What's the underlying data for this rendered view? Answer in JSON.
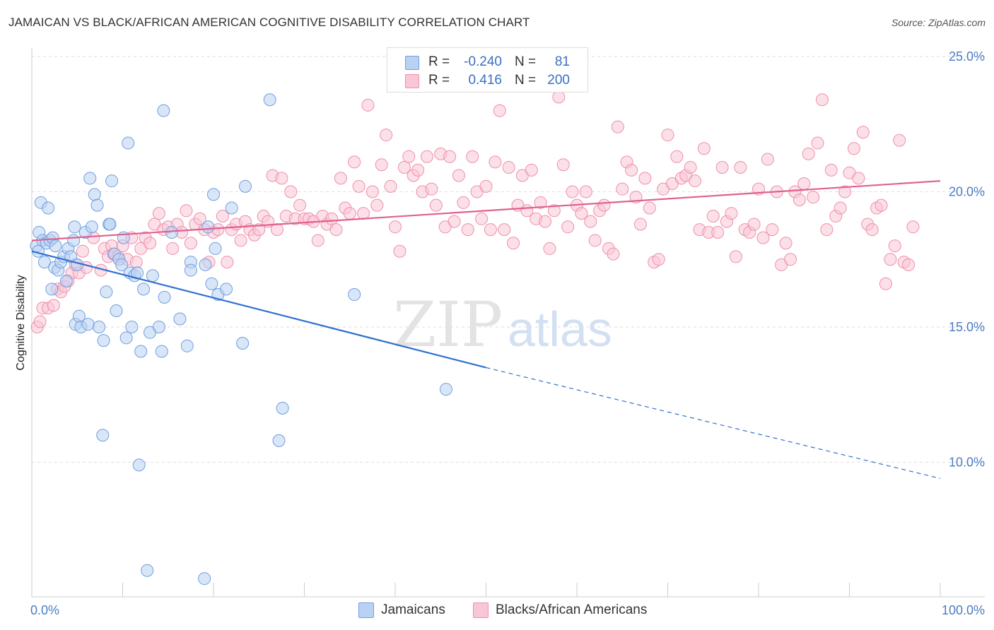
{
  "title": "JAMAICAN VS BLACK/AFRICAN AMERICAN COGNITIVE DISABILITY CORRELATION CHART",
  "source": "Source: ZipAtlas.com",
  "watermark": {
    "zip": "ZIP",
    "atlas": "atlas"
  },
  "legend_top": [
    {
      "r_label": "R =",
      "r_value": "-0.240",
      "n_label": "N =",
      "n_value": "81",
      "color": "#a9c7f0"
    },
    {
      "r_label": "R =",
      "r_value": "0.416",
      "n_label": "N =",
      "n_value": "200",
      "color": "#f7b8cb"
    }
  ],
  "chart_data": {
    "type": "scatter",
    "title": "JAMAICAN VS BLACK/AFRICAN AMERICAN COGNITIVE DISABILITY CORRELATION CHART",
    "xlabel": "",
    "ylabel": "Cognitive Disability",
    "x_ticks": [
      "0.0%",
      "100.0%"
    ],
    "y_ticks": [
      "10.0%",
      "15.0%",
      "20.0%",
      "25.0%"
    ],
    "xlim": [
      0,
      100
    ],
    "ylim": [
      5.0,
      25.5
    ],
    "grid": true,
    "legend_position": "bottom",
    "series": [
      {
        "name": "Jamaicans",
        "color": "#6f9fe0",
        "fill": "#b9d2f3",
        "trend": {
          "x": [
            0,
            50
          ],
          "y": [
            17.8,
            13.5
          ],
          "dashed_extension_to": [
            100,
            9.4
          ],
          "color": "#3070d0"
        },
        "points": [
          [
            0.5,
            18.0
          ],
          [
            0.7,
            17.8
          ],
          [
            0.8,
            18.5
          ],
          [
            1.0,
            19.6
          ],
          [
            1.2,
            18.2
          ],
          [
            1.4,
            17.4
          ],
          [
            1.6,
            18.1
          ],
          [
            1.8,
            19.4
          ],
          [
            2.0,
            18.2
          ],
          [
            2.2,
            16.4
          ],
          [
            2.3,
            18.3
          ],
          [
            2.5,
            17.2
          ],
          [
            2.6,
            18.0
          ],
          [
            2.9,
            17.1
          ],
          [
            3.2,
            17.4
          ],
          [
            3.5,
            17.6
          ],
          [
            3.8,
            16.7
          ],
          [
            4.0,
            17.9
          ],
          [
            4.3,
            17.6
          ],
          [
            4.6,
            18.2
          ],
          [
            4.7,
            18.7
          ],
          [
            4.8,
            15.1
          ],
          [
            5.0,
            17.3
          ],
          [
            5.2,
            15.4
          ],
          [
            5.4,
            15.0
          ],
          [
            5.9,
            18.5
          ],
          [
            6.2,
            15.1
          ],
          [
            6.4,
            20.5
          ],
          [
            6.6,
            18.7
          ],
          [
            6.9,
            19.9
          ],
          [
            7.2,
            19.5
          ],
          [
            7.4,
            15.0
          ],
          [
            7.8,
            11.0
          ],
          [
            7.9,
            14.5
          ],
          [
            8.2,
            16.3
          ],
          [
            8.5,
            18.8
          ],
          [
            8.6,
            18.8
          ],
          [
            8.8,
            20.4
          ],
          [
            9.1,
            17.7
          ],
          [
            9.3,
            15.6
          ],
          [
            9.6,
            17.5
          ],
          [
            9.9,
            17.3
          ],
          [
            10.1,
            18.3
          ],
          [
            10.4,
            14.6
          ],
          [
            10.6,
            21.8
          ],
          [
            10.8,
            17.0
          ],
          [
            11.0,
            15.0
          ],
          [
            11.3,
            16.9
          ],
          [
            11.6,
            17.0
          ],
          [
            11.8,
            9.9
          ],
          [
            12.0,
            14.1
          ],
          [
            12.3,
            16.4
          ],
          [
            12.7,
            6.0
          ],
          [
            13.0,
            14.8
          ],
          [
            13.3,
            16.9
          ],
          [
            14.0,
            15.0
          ],
          [
            14.3,
            14.1
          ],
          [
            14.5,
            23.0
          ],
          [
            14.6,
            16.1
          ],
          [
            15.4,
            18.5
          ],
          [
            16.3,
            15.3
          ],
          [
            17.1,
            14.3
          ],
          [
            17.5,
            17.4
          ],
          [
            17.5,
            17.1
          ],
          [
            19.0,
            5.7
          ],
          [
            19.1,
            17.3
          ],
          [
            19.4,
            18.7
          ],
          [
            19.8,
            16.6
          ],
          [
            20.0,
            19.9
          ],
          [
            20.2,
            17.9
          ],
          [
            20.5,
            16.2
          ],
          [
            21.4,
            16.4
          ],
          [
            22.0,
            19.4
          ],
          [
            23.2,
            14.4
          ],
          [
            23.5,
            20.2
          ],
          [
            26.2,
            23.4
          ],
          [
            27.2,
            10.8
          ],
          [
            27.6,
            12.0
          ],
          [
            35.5,
            16.2
          ],
          [
            45.6,
            12.7
          ]
        ]
      },
      {
        "name": "Blacks/African Americans",
        "color": "#ee8fab",
        "fill": "#f9c6d5",
        "trend": {
          "x": [
            0,
            100
          ],
          "y": [
            18.2,
            20.4
          ],
          "color": "#e06090"
        },
        "points": [
          [
            0.6,
            15.0
          ],
          [
            0.9,
            15.2
          ],
          [
            1.2,
            15.7
          ],
          [
            1.8,
            15.7
          ],
          [
            2.4,
            15.8
          ],
          [
            2.8,
            16.4
          ],
          [
            3.2,
            16.3
          ],
          [
            3.6,
            16.5
          ],
          [
            4.0,
            16.7
          ],
          [
            4.4,
            17.0
          ],
          [
            4.8,
            17.3
          ],
          [
            5.2,
            17.0
          ],
          [
            5.6,
            17.8
          ],
          [
            6.0,
            17.2
          ],
          [
            6.8,
            18.3
          ],
          [
            7.6,
            17.1
          ],
          [
            8.0,
            17.9
          ],
          [
            8.4,
            17.6
          ],
          [
            8.8,
            18.0
          ],
          [
            9.0,
            17.7
          ],
          [
            9.5,
            17.6
          ],
          [
            10.0,
            18.0
          ],
          [
            10.5,
            17.5
          ],
          [
            11.0,
            18.3
          ],
          [
            11.5,
            17.4
          ],
          [
            12.0,
            17.9
          ],
          [
            12.5,
            18.3
          ],
          [
            13.0,
            18.1
          ],
          [
            13.5,
            18.8
          ],
          [
            14.0,
            19.2
          ],
          [
            14.5,
            18.6
          ],
          [
            15.0,
            18.7
          ],
          [
            15.5,
            17.9
          ],
          [
            16.0,
            18.8
          ],
          [
            16.5,
            18.5
          ],
          [
            17.0,
            19.3
          ],
          [
            17.5,
            18.1
          ],
          [
            18.0,
            18.8
          ],
          [
            18.5,
            19.0
          ],
          [
            19.0,
            18.6
          ],
          [
            19.5,
            17.4
          ],
          [
            20.0,
            18.5
          ],
          [
            20.5,
            18.6
          ],
          [
            21.0,
            19.1
          ],
          [
            21.5,
            17.4
          ],
          [
            22.0,
            18.6
          ],
          [
            22.5,
            18.8
          ],
          [
            23.0,
            18.2
          ],
          [
            23.5,
            18.9
          ],
          [
            24.0,
            18.6
          ],
          [
            24.5,
            18.4
          ],
          [
            25.0,
            18.6
          ],
          [
            25.5,
            19.1
          ],
          [
            26.0,
            18.9
          ],
          [
            26.5,
            20.6
          ],
          [
            27.0,
            18.6
          ],
          [
            27.5,
            20.5
          ],
          [
            28.0,
            19.1
          ],
          [
            28.5,
            20.0
          ],
          [
            29.0,
            19.0
          ],
          [
            29.5,
            19.5
          ],
          [
            30.0,
            19.0
          ],
          [
            30.5,
            19.0
          ],
          [
            31.0,
            18.9
          ],
          [
            31.5,
            18.2
          ],
          [
            32.0,
            19.1
          ],
          [
            32.5,
            18.8
          ],
          [
            33.0,
            19.0
          ],
          [
            33.5,
            18.6
          ],
          [
            34.0,
            20.5
          ],
          [
            34.5,
            19.4
          ],
          [
            35.0,
            19.2
          ],
          [
            35.5,
            21.1
          ],
          [
            36.0,
            20.2
          ],
          [
            36.5,
            19.2
          ],
          [
            37.0,
            23.2
          ],
          [
            37.5,
            20.0
          ],
          [
            38.0,
            19.5
          ],
          [
            38.5,
            21.0
          ],
          [
            39.0,
            22.1
          ],
          [
            39.5,
            20.2
          ],
          [
            40.0,
            18.7
          ],
          [
            40.5,
            17.8
          ],
          [
            41.0,
            20.9
          ],
          [
            41.5,
            21.3
          ],
          [
            42.0,
            20.6
          ],
          [
            42.5,
            20.8
          ],
          [
            43.0,
            20.0
          ],
          [
            43.5,
            21.3
          ],
          [
            44.0,
            20.1
          ],
          [
            44.5,
            19.5
          ],
          [
            45.0,
            21.4
          ],
          [
            45.5,
            18.7
          ],
          [
            46.0,
            21.3
          ],
          [
            46.5,
            18.9
          ],
          [
            47.0,
            20.6
          ],
          [
            47.5,
            19.6
          ],
          [
            48.0,
            18.6
          ],
          [
            48.5,
            21.3
          ],
          [
            49.0,
            20.0
          ],
          [
            49.5,
            19.0
          ],
          [
            50.0,
            20.2
          ],
          [
            50.5,
            18.6
          ],
          [
            51.0,
            21.1
          ],
          [
            51.5,
            23.0
          ],
          [
            52.0,
            18.6
          ],
          [
            52.5,
            20.9
          ],
          [
            53.0,
            18.1
          ],
          [
            53.5,
            19.5
          ],
          [
            54.0,
            20.6
          ],
          [
            54.5,
            19.3
          ],
          [
            55.0,
            20.8
          ],
          [
            55.5,
            19.0
          ],
          [
            56.0,
            19.6
          ],
          [
            56.5,
            18.9
          ],
          [
            57.0,
            17.9
          ],
          [
            57.5,
            19.3
          ],
          [
            58.0,
            23.5
          ],
          [
            58.5,
            21.0
          ],
          [
            59.0,
            18.7
          ],
          [
            59.5,
            20.0
          ],
          [
            60.0,
            19.5
          ],
          [
            60.5,
            19.2
          ],
          [
            61.0,
            20.0
          ],
          [
            61.5,
            18.9
          ],
          [
            62.0,
            18.2
          ],
          [
            62.5,
            19.3
          ],
          [
            63.0,
            19.5
          ],
          [
            63.5,
            17.9
          ],
          [
            64.0,
            17.7
          ],
          [
            64.5,
            22.4
          ],
          [
            65.0,
            20.1
          ],
          [
            65.5,
            21.1
          ],
          [
            66.0,
            20.8
          ],
          [
            66.5,
            19.8
          ],
          [
            67.0,
            18.8
          ],
          [
            67.5,
            20.5
          ],
          [
            68.0,
            19.4
          ],
          [
            68.5,
            17.4
          ],
          [
            69.0,
            17.5
          ],
          [
            69.5,
            20.1
          ],
          [
            70.0,
            22.1
          ],
          [
            70.5,
            20.3
          ],
          [
            71.0,
            21.3
          ],
          [
            71.5,
            20.5
          ],
          [
            72.0,
            20.6
          ],
          [
            72.5,
            20.9
          ],
          [
            73.0,
            20.4
          ],
          [
            73.5,
            18.6
          ],
          [
            74.0,
            21.6
          ],
          [
            74.5,
            18.5
          ],
          [
            75.0,
            19.1
          ],
          [
            75.5,
            18.5
          ],
          [
            76.0,
            20.9
          ],
          [
            76.5,
            18.9
          ],
          [
            77.0,
            19.2
          ],
          [
            77.5,
            17.6
          ],
          [
            78.0,
            20.9
          ],
          [
            78.5,
            18.6
          ],
          [
            79.0,
            18.5
          ],
          [
            79.5,
            18.8
          ],
          [
            80.0,
            20.1
          ],
          [
            80.5,
            18.3
          ],
          [
            81.0,
            21.2
          ],
          [
            81.5,
            18.6
          ],
          [
            82.0,
            20.0
          ],
          [
            82.5,
            17.3
          ],
          [
            83.0,
            18.1
          ],
          [
            83.5,
            17.5
          ],
          [
            84.0,
            20.0
          ],
          [
            84.5,
            19.7
          ],
          [
            85.0,
            20.3
          ],
          [
            85.5,
            21.4
          ],
          [
            86.0,
            19.8
          ],
          [
            86.5,
            21.8
          ],
          [
            87.0,
            23.4
          ],
          [
            87.5,
            18.6
          ],
          [
            88.0,
            20.8
          ],
          [
            88.5,
            19.1
          ],
          [
            89.0,
            19.4
          ],
          [
            89.5,
            20.0
          ],
          [
            90.0,
            20.7
          ],
          [
            90.5,
            21.6
          ],
          [
            91.0,
            20.5
          ],
          [
            91.5,
            22.2
          ],
          [
            92.0,
            18.8
          ],
          [
            92.5,
            18.6
          ],
          [
            93.0,
            19.4
          ],
          [
            93.5,
            19.5
          ],
          [
            94.0,
            16.6
          ],
          [
            94.5,
            17.5
          ],
          [
            95.0,
            18.0
          ],
          [
            95.5,
            21.9
          ],
          [
            96.0,
            17.4
          ],
          [
            96.5,
            17.3
          ],
          [
            97.0,
            18.7
          ]
        ]
      }
    ]
  }
}
